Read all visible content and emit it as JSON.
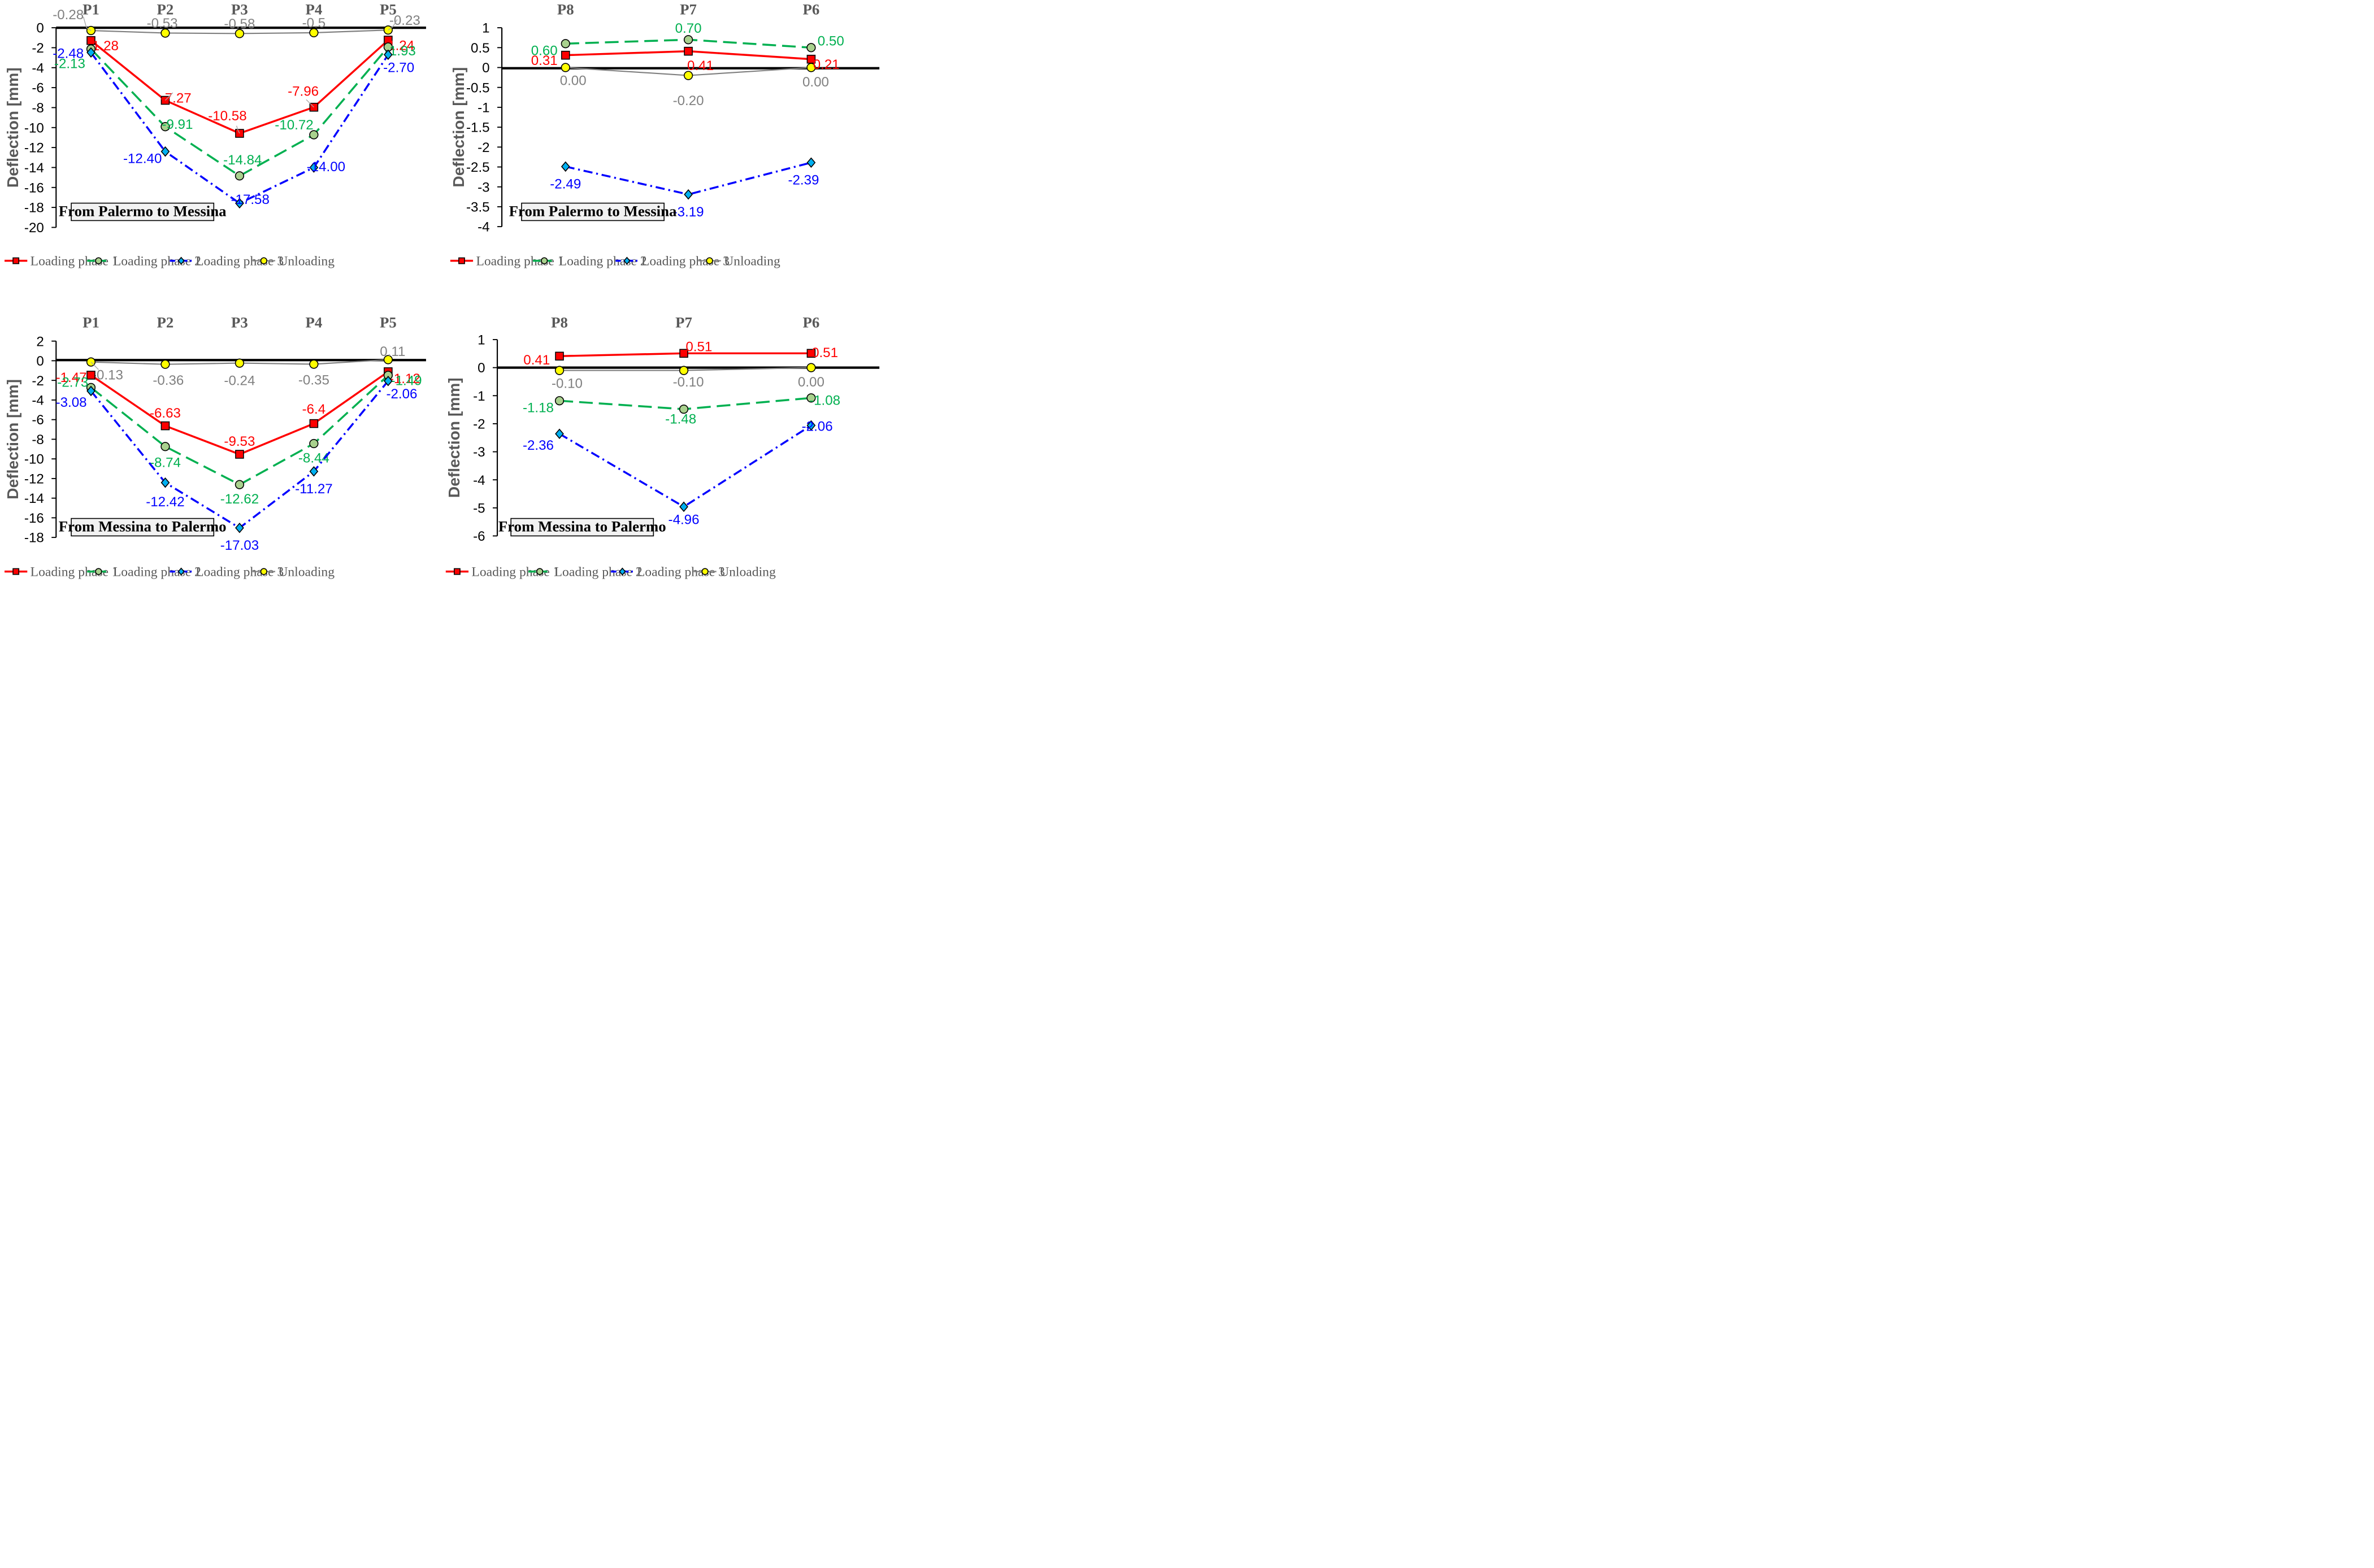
{
  "series_styles": [
    {
      "color": "#ff0000",
      "marker": "square",
      "marker_fill": "#ff0000",
      "dash": "",
      "label_color": "#ff0000"
    },
    {
      "color": "#00b050",
      "marker": "circle",
      "marker_fill": "#a9d18e",
      "dash": "dashed",
      "label_color": "#00b050"
    },
    {
      "color": "#0000ff",
      "marker": "diamond",
      "marker_fill": "#00b0f0",
      "dash": "dashdot",
      "label_color": "#0000ff"
    },
    {
      "color": "#7f7f7f",
      "marker": "circle",
      "marker_fill": "#ffff00",
      "dash": "",
      "label_color": "#808080"
    }
  ],
  "chart_data": [
    {
      "type": "line",
      "categories": [
        "P1",
        "P2",
        "P3",
        "P4",
        "P5"
      ],
      "ylabel": "Deflection [mm]",
      "ylim": [
        -20,
        0
      ],
      "ytick_step": 2,
      "ytick_labels": [
        "0",
        "-2",
        "-4",
        "-6",
        "-8",
        "-10",
        "-12",
        "-14",
        "-16",
        "-18",
        "-20"
      ],
      "annotation": "From Palermo to Messina",
      "legend_position": "bottom",
      "series": [
        {
          "name": "Loading phase 1",
          "values": [
            -1.28,
            -7.27,
            -10.58,
            -7.96,
            -1.24
          ],
          "labels": [
            "-1.28",
            "-7.27",
            "-10.58",
            "-7.96",
            "-1.24"
          ]
        },
        {
          "name": "Loading phase 2",
          "values": [
            -2.13,
            -9.91,
            -14.84,
            -10.72,
            -1.93
          ],
          "labels": [
            "-2.13",
            "-9.91",
            "-14.84",
            "-10.72",
            "-1.93"
          ]
        },
        {
          "name": "Loading phase 3",
          "values": [
            -2.48,
            -12.4,
            -17.58,
            -14.0,
            -2.7
          ],
          "labels": [
            "-2.48",
            "-12.40",
            "-17.58",
            "-14.00",
            "-2.70"
          ]
        },
        {
          "name": "Unloading",
          "values": [
            -0.28,
            -0.53,
            -0.58,
            -0.5,
            -0.23
          ],
          "labels": [
            "-0.28",
            "-0.53",
            "-0.58",
            "-0.5",
            "-0.23"
          ]
        }
      ]
    },
    {
      "type": "line",
      "categories": [
        "P8",
        "P7",
        "P6"
      ],
      "ylabel": "Deflection [mm]",
      "ylim": [
        -4,
        1
      ],
      "ytick_step": 0.5,
      "ytick_labels": [
        "1",
        "0.5",
        "0",
        "-0.5",
        "-1",
        "-1.5",
        "-2",
        "-2.5",
        "-3",
        "-3.5",
        "-4"
      ],
      "annotation": "From Palermo to Messina",
      "legend_position": "bottom",
      "series": [
        {
          "name": "Loading phase 1",
          "values": [
            0.31,
            0.41,
            0.21
          ],
          "labels": [
            "0.31",
            "0.41",
            "0.21"
          ]
        },
        {
          "name": "Loading phase 2",
          "values": [
            0.6,
            0.7,
            0.5
          ],
          "labels": [
            "0.60",
            "0.70",
            "0.50"
          ]
        },
        {
          "name": "Loading phase 3",
          "values": [
            -2.49,
            -3.19,
            -2.39
          ],
          "labels": [
            "-2.49",
            "-3.19",
            "-2.39"
          ]
        },
        {
          "name": "Unloading",
          "values": [
            0.0,
            -0.2,
            0.0
          ],
          "labels": [
            "0.00",
            "-0.20",
            "0.00"
          ]
        }
      ]
    },
    {
      "type": "line",
      "categories": [
        "P1",
        "P2",
        "P3",
        "P4",
        "P5"
      ],
      "ylabel": "Deflection [mm]",
      "ylim": [
        -18,
        2
      ],
      "ytick_step": 2,
      "ytick_labels": [
        "2",
        "0",
        "-2",
        "-4",
        "-6",
        "-8",
        "-10",
        "-12",
        "-14",
        "-16",
        "-18"
      ],
      "annotation": "From Messina to Palermo",
      "legend_position": "bottom",
      "series": [
        {
          "name": "Loading phase 1",
          "values": [
            -1.47,
            -6.63,
            -9.53,
            -6.4,
            -1.12
          ],
          "labels": [
            "-1.47",
            "-6.63",
            "-9.53",
            "-6.4",
            "-1.12"
          ]
        },
        {
          "name": "Loading phase 2",
          "values": [
            -2.73,
            -8.74,
            -12.62,
            -8.44,
            -1.49
          ],
          "labels": [
            "-2.73",
            "-8.74",
            "-12.62",
            "-8.44",
            "-1.49"
          ]
        },
        {
          "name": "Loading phase 3",
          "values": [
            -3.08,
            -12.42,
            -17.03,
            -11.27,
            -2.06
          ],
          "labels": [
            "-3.08",
            "-12.42",
            "-17.03",
            "-11.27",
            "-2.06"
          ]
        },
        {
          "name": "Unloading",
          "values": [
            -0.13,
            -0.36,
            -0.24,
            -0.35,
            0.11
          ],
          "labels": [
            "-0.13",
            "-0.36",
            "-0.24",
            "-0.35",
            "0.11"
          ]
        }
      ]
    },
    {
      "type": "line",
      "categories": [
        "P8",
        "P7",
        "P6"
      ],
      "ylabel": "Deflection [mm]",
      "ylim": [
        -6,
        1
      ],
      "ytick_step": 1,
      "ytick_labels": [
        "1",
        "0",
        "-1",
        "-2",
        "-3",
        "-4",
        "-5",
        "-6"
      ],
      "annotation": "From Messina to Palermo",
      "legend_position": "bottom",
      "series": [
        {
          "name": "Loading phase 1",
          "values": [
            0.41,
            0.51,
            0.51
          ],
          "labels": [
            "0.41",
            "0.51",
            "0.51"
          ]
        },
        {
          "name": "Loading phase 2",
          "values": [
            -1.18,
            -1.48,
            -1.08
          ],
          "labels": [
            "-1.18",
            "-1.48",
            "-1.08"
          ]
        },
        {
          "name": "Loading phase 3",
          "values": [
            -2.36,
            -4.96,
            -2.06
          ],
          "labels": [
            "-2.36",
            "-4.96",
            "-2.06"
          ]
        },
        {
          "name": "Unloading",
          "values": [
            -0.1,
            -0.1,
            0.0
          ],
          "labels": [
            "-0.10",
            "-0.10",
            "0.00"
          ]
        }
      ]
    }
  ]
}
